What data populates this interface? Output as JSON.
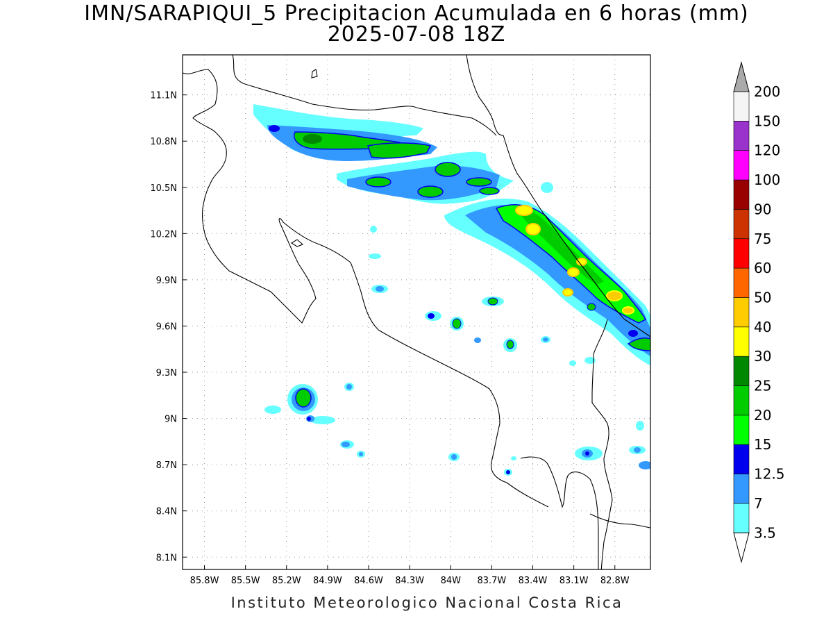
{
  "title": {
    "line1": "IMN/SARAPIQUI_5 Precipitacion Acumulada en 6 horas (mm)",
    "line2": "2025-07-08 18Z"
  },
  "footer": "Instituto Meteorologico Nacional Costa Rica",
  "map": {
    "lon_range": [
      -85.96,
      -82.54
    ],
    "lat_range": [
      8.02,
      11.36
    ],
    "x_ticks": [
      {
        "value": -85.8,
        "label": "85.8W"
      },
      {
        "value": -85.5,
        "label": "85.5W"
      },
      {
        "value": -85.2,
        "label": "85.2W"
      },
      {
        "value": -84.9,
        "label": "84.9W"
      },
      {
        "value": -84.6,
        "label": "84.6W"
      },
      {
        "value": -84.3,
        "label": "84.3W"
      },
      {
        "value": -84.0,
        "label": "84W"
      },
      {
        "value": -83.7,
        "label": "83.7W"
      },
      {
        "value": -83.4,
        "label": "83.4W"
      },
      {
        "value": -83.1,
        "label": "83.1W"
      },
      {
        "value": -82.8,
        "label": "82.8W"
      }
    ],
    "y_ticks": [
      {
        "value": 11.1,
        "label": "11.1N"
      },
      {
        "value": 10.8,
        "label": "10.8N"
      },
      {
        "value": 10.5,
        "label": "10.5N"
      },
      {
        "value": 10.2,
        "label": "10.2N"
      },
      {
        "value": 9.9,
        "label": "9.9N"
      },
      {
        "value": 9.6,
        "label": "9.6N"
      },
      {
        "value": 9.3,
        "label": "9.3N"
      },
      {
        "value": 9.0,
        "label": "9N"
      },
      {
        "value": 8.7,
        "label": "8.7N"
      },
      {
        "value": 8.4,
        "label": "8.4N"
      },
      {
        "value": 8.1,
        "label": "8.1N"
      }
    ],
    "grid": "dotted"
  },
  "colorbar": {
    "levels": [
      "3.5",
      "7",
      "12.5",
      "15",
      "20",
      "25",
      "30",
      "40",
      "50",
      "60",
      "75",
      "90",
      "100",
      "120",
      "150",
      "200"
    ],
    "colors": [
      "#66ffff",
      "#3399ff",
      "#0000ee",
      "#00ff00",
      "#00cc00",
      "#008800",
      "#ffff00",
      "#ffcc00",
      "#ff6600",
      "#ff0000",
      "#cc3300",
      "#990000",
      "#ff00ff",
      "#9933cc",
      "#f5f5f5"
    ],
    "top_arrow_color": "#aaaaaa",
    "bottom_arrow_color": "#ffffff"
  }
}
